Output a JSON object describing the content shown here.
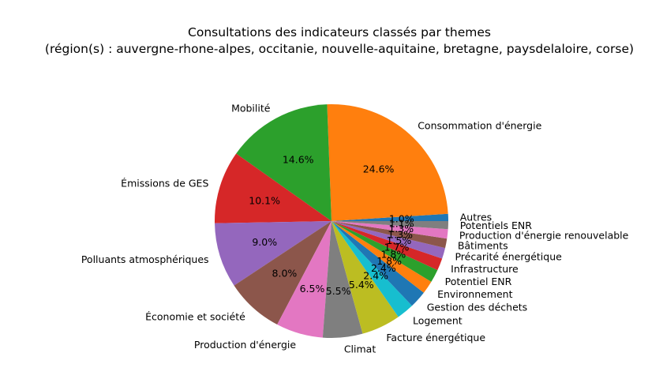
{
  "chart_data": {
    "type": "pie",
    "title": "Consultations des indicateurs classés par themes",
    "subtitle": "(région(s) : auvergne-rhone-alpes, occitanie, nouvelle-aquitaine, bretagne, paysdelaloire, corse)",
    "slices": [
      {
        "label": "Autres",
        "value": 1.0,
        "pct_label": "1.0%",
        "color": "#1f77b4"
      },
      {
        "label": "Consommation d'énergie",
        "value": 24.6,
        "pct_label": "24.6%",
        "color": "#ff7f0e"
      },
      {
        "label": "Mobilité",
        "value": 14.6,
        "pct_label": "14.6%",
        "color": "#2ca02c"
      },
      {
        "label": "Émissions de GES",
        "value": 10.1,
        "pct_label": "10.1%",
        "color": "#d62728"
      },
      {
        "label": "Polluants atmosphériques",
        "value": 9.0,
        "pct_label": "9.0%",
        "color": "#9467bd"
      },
      {
        "label": "Économie et société",
        "value": 8.0,
        "pct_label": "8.0%",
        "color": "#8c564b"
      },
      {
        "label": "Production d'énergie",
        "value": 6.5,
        "pct_label": "6.5%",
        "color": "#e377c2"
      },
      {
        "label": "Climat",
        "value": 5.5,
        "pct_label": "5.5%",
        "color": "#7f7f7f"
      },
      {
        "label": "Facture énergétique",
        "value": 5.4,
        "pct_label": "5.4%",
        "color": "#bcbd22"
      },
      {
        "label": "Logement",
        "value": 2.4,
        "pct_label": "2.4%",
        "color": "#17becf"
      },
      {
        "label": "Gestion des déchets",
        "value": 2.4,
        "pct_label": "2.4%",
        "color": "#1f77b4"
      },
      {
        "label": "Environnement",
        "value": 1.8,
        "pct_label": "1.8%",
        "color": "#ff7f0e"
      },
      {
        "label": "Potentiel ENR",
        "value": 1.8,
        "pct_label": "1.8%",
        "color": "#2ca02c"
      },
      {
        "label": "Infrastructure",
        "value": 1.7,
        "pct_label": "1.7%",
        "color": "#d62728"
      },
      {
        "label": "Précarité énergétique",
        "value": 1.5,
        "pct_label": "1.5%",
        "color": "#9467bd"
      },
      {
        "label": "Bâtiments",
        "value": 1.3,
        "pct_label": "1.3%",
        "color": "#8c564b"
      },
      {
        "label": "Production d'énergie renouvelable",
        "value": 1.3,
        "pct_label": "1.3%",
        "color": "#e377c2"
      },
      {
        "label": "Potentiels ENR",
        "value": 1.1,
        "pct_label": "1.1%",
        "color": "#7f7f7f"
      }
    ]
  }
}
